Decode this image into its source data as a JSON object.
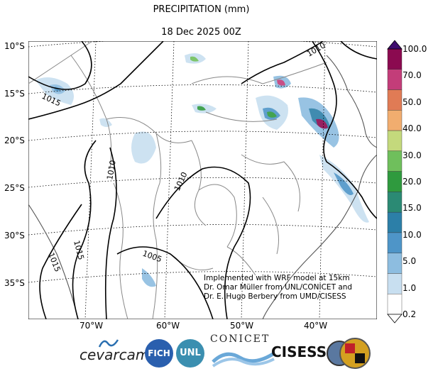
{
  "title": "PRECIPITATION (mm)",
  "subtitle": "18 Dec 2025 00Z",
  "lat_labels": [
    "10°S",
    "15°S",
    "20°S",
    "25°S",
    "30°S",
    "35°S"
  ],
  "lon_labels": [
    "70°W",
    "60°W",
    "50°W",
    "40°W"
  ],
  "colorbar": {
    "ticks": [
      "100.0",
      "70.0",
      "50.0",
      "40.0",
      "30.0",
      "20.0",
      "15.0",
      "10.0",
      "5.0",
      "1.0",
      "0.2"
    ],
    "colors": [
      "#8b0a50",
      "#c33d79",
      "#e07b55",
      "#f1ad6f",
      "#c4d97c",
      "#6fbf5c",
      "#2f9a3e",
      "#2b8a74",
      "#2c7fa8",
      "#4e95c8",
      "#8dbde0",
      "#c8dff0",
      "#ffffff"
    ]
  },
  "isobar_labels": [
    "1010",
    "1015",
    "1010",
    "1010",
    "1015",
    "1005",
    "1015"
  ],
  "credit_lines": [
    "Implemented with WRF model at 15km",
    "Dr. Omar Müller from UNL/CONICET and",
    "Dr. E. Hugo Berbery from UMD/CISESS"
  ],
  "logos": {
    "cevarcam": "cevarcam",
    "fich": "FICH",
    "unl": "UNL",
    "conicet": "CONICET",
    "cisess": "CISESS"
  }
}
